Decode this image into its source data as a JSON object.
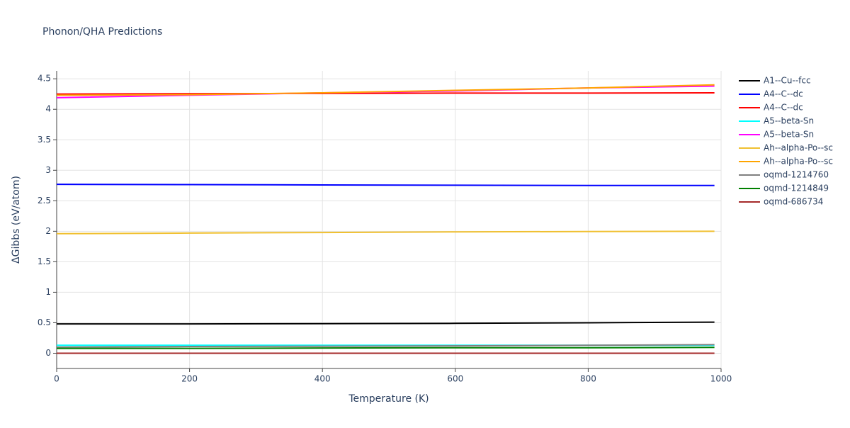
{
  "chart_data": {
    "type": "line",
    "title": "Phonon/QHA Predictions",
    "x_label": "Temperature (K)",
    "y_label": "ΔGibbs (eV/atom)",
    "x": [
      0,
      200,
      400,
      600,
      800,
      990
    ],
    "series": [
      {
        "name": "A1--Cu--fcc",
        "color": "#000000",
        "values": [
          0.48,
          0.48,
          0.485,
          0.49,
          0.5,
          0.51
        ]
      },
      {
        "name": "A4--C--dc",
        "color": "#0000ff",
        "values": [
          2.77,
          2.765,
          2.76,
          2.755,
          2.75,
          2.75
        ]
      },
      {
        "name": "A4--C--dc",
        "color": "#ff0000",
        "values": [
          4.25,
          4.255,
          4.26,
          4.265,
          4.265,
          4.27
        ]
      },
      {
        "name": "A5--beta-Sn",
        "color": "#00ffff",
        "values": [
          0.13,
          0.13,
          0.13,
          0.13,
          0.13,
          0.13
        ]
      },
      {
        "name": "A5--beta-Sn",
        "color": "#ff00ff",
        "values": [
          4.19,
          4.23,
          4.27,
          4.3,
          4.35,
          4.38
        ]
      },
      {
        "name": "Ah--alpha-Po--sc",
        "color": "#f0c030",
        "values": [
          1.96,
          1.97,
          1.98,
          1.99,
          1.995,
          2.0
        ]
      },
      {
        "name": "Ah--alpha-Po--sc",
        "color": "#ffa500",
        "values": [
          4.23,
          4.24,
          4.27,
          4.31,
          4.35,
          4.4
        ]
      },
      {
        "name": "oqmd-1214760",
        "color": "#808080",
        "values": [
          0.1,
          0.11,
          0.115,
          0.12,
          0.13,
          0.14
        ]
      },
      {
        "name": "oqmd-1214849",
        "color": "#008000",
        "values": [
          0.08,
          0.08,
          0.085,
          0.09,
          0.09,
          0.095
        ]
      },
      {
        "name": "oqmd-686734",
        "color": "#a52a2a",
        "values": [
          0,
          0,
          0,
          0,
          0,
          0
        ]
      }
    ],
    "xlim": [
      0,
      1000
    ],
    "xticks": [
      0,
      200,
      400,
      600,
      800,
      1000
    ],
    "ylim": [
      -0.25,
      4.63
    ],
    "yticks": [
      0,
      0.5,
      1,
      1.5,
      2,
      2.5,
      3,
      3.5,
      4,
      4.5
    ],
    "grid": true
  }
}
